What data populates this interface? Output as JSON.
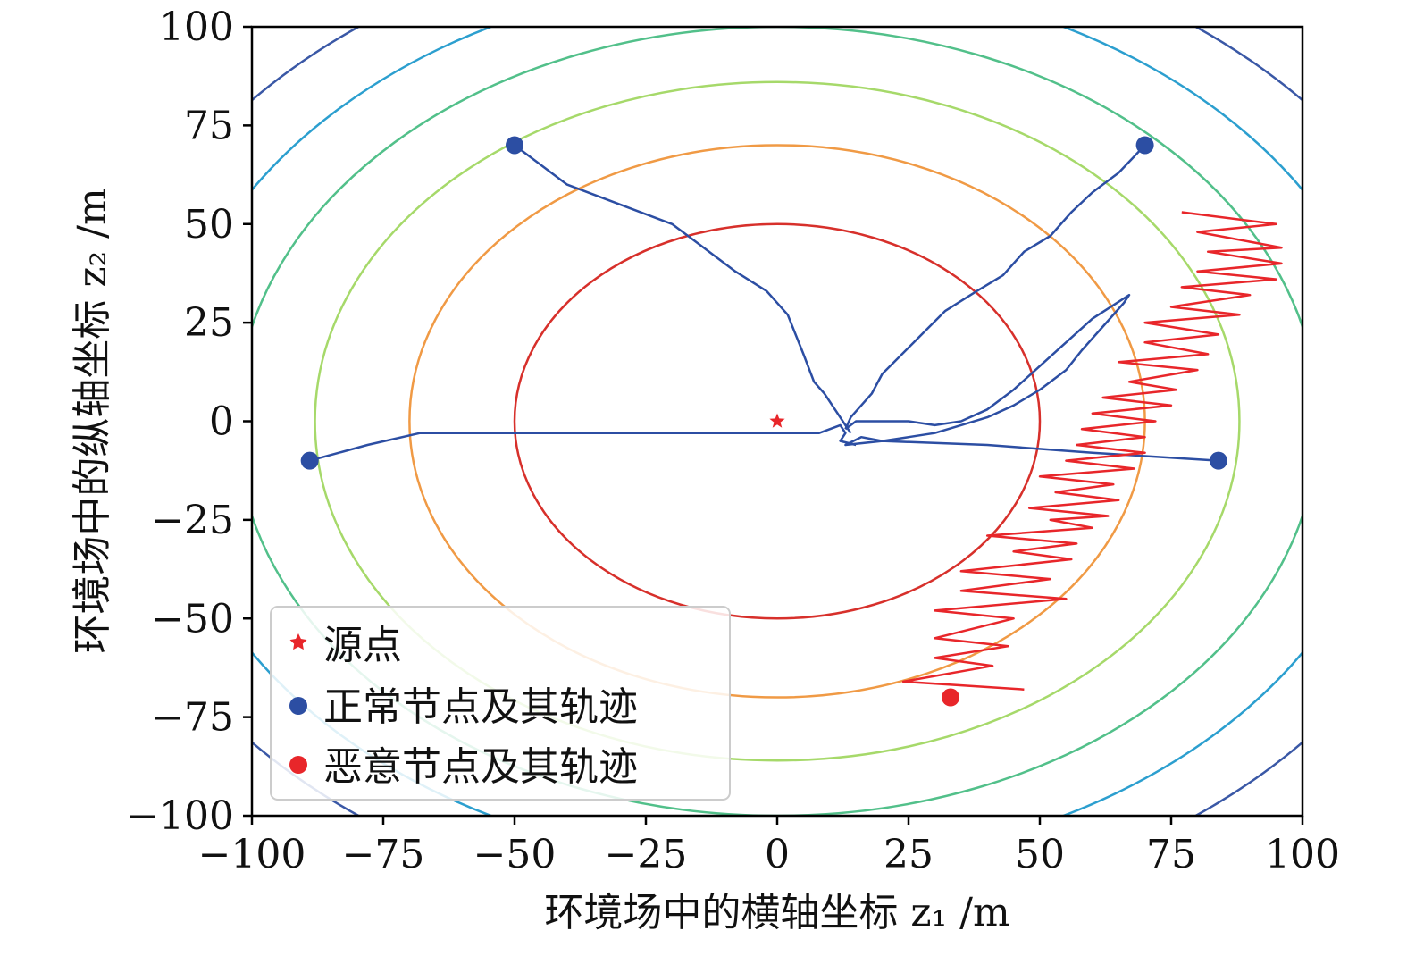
{
  "chart_data": {
    "type": "line",
    "xlabel": "环境场中的横轴坐标 z₁ /m",
    "ylabel": "环境场中的纵轴坐标 z₂ /m",
    "xlim": [
      -100,
      100
    ],
    "ylim": [
      -100,
      100
    ],
    "x_ticks": [
      -100,
      -75,
      -50,
      -25,
      0,
      25,
      50,
      75,
      100
    ],
    "y_ticks": [
      -100,
      -75,
      -50,
      -25,
      0,
      25,
      50,
      75,
      100
    ],
    "x_tick_labels": [
      "−100",
      "−75",
      "−50",
      "−25",
      "0",
      "25",
      "50",
      "75",
      "100"
    ],
    "y_tick_labels": [
      "−100",
      "−75",
      "−50",
      "−25",
      "0",
      "25",
      "50",
      "75",
      "100"
    ],
    "grid": false,
    "legend_position": "lower-left",
    "contour_levels": [
      {
        "a": 50,
        "b": 50,
        "color": "#d7302b"
      },
      {
        "a": 70,
        "b": 70,
        "color": "#f09a45"
      },
      {
        "a": 88,
        "b": 86,
        "color": "#a6d96a"
      },
      {
        "a": 103,
        "b": 100,
        "color": "#52c08a"
      },
      {
        "a": 117,
        "b": 113,
        "color": "#2c9fcf"
      },
      {
        "a": 131,
        "b": 126,
        "color": "#3a58a6"
      }
    ],
    "source": {
      "name": "源点",
      "x": 0,
      "y": 0,
      "color": "#e8262a"
    },
    "series": [
      {
        "name": "正常节点及其轨迹",
        "color": "#2c4ea3",
        "trajectories": [
          {
            "start": [
              -50,
              70
            ],
            "points": [
              [
                -50,
                70
              ],
              [
                -40,
                60
              ],
              [
                -30,
                55
              ],
              [
                -20,
                50
              ],
              [
                -15,
                45
              ],
              [
                -8,
                38
              ],
              [
                -2,
                33
              ],
              [
                2,
                27
              ],
              [
                5,
                17
              ],
              [
                7,
                10
              ],
              [
                9,
                7
              ],
              [
                11,
                3
              ],
              [
                13,
                -1
              ],
              [
                14,
                -3
              ]
            ]
          },
          {
            "start": [
              70,
              70
            ],
            "points": [
              [
                70,
                70
              ],
              [
                65,
                63
              ],
              [
                60,
                58
              ],
              [
                56,
                53
              ],
              [
                52,
                47
              ],
              [
                47,
                43
              ],
              [
                43,
                37
              ],
              [
                38,
                33
              ],
              [
                32,
                28
              ],
              [
                26,
                20
              ],
              [
                20,
                12
              ],
              [
                18,
                7
              ],
              [
                14,
                1
              ],
              [
                13,
                -2
              ]
            ]
          },
          {
            "start": [
              -89,
              -10
            ],
            "points": [
              [
                -89,
                -10
              ],
              [
                -78,
                -6
              ],
              [
                -68,
                -3
              ],
              [
                -40,
                -3
              ],
              [
                -20,
                -3
              ],
              [
                8,
                -3
              ],
              [
                10,
                -2
              ],
              [
                12,
                -1
              ],
              [
                13,
                -3
              ],
              [
                12,
                -5
              ],
              [
                15,
                -6
              ]
            ]
          },
          {
            "start": [
              84,
              -10
            ],
            "points": [
              [
                84,
                -10
              ],
              [
                60,
                -8
              ],
              [
                40,
                -6
              ],
              [
                20,
                -5
              ],
              [
                13,
                -6
              ],
              [
                16,
                -4
              ],
              [
                20,
                -5
              ],
              [
                25,
                -4
              ],
              [
                30,
                -3
              ],
              [
                35,
                -1
              ],
              [
                40,
                1
              ],
              [
                45,
                4
              ],
              [
                50,
                8
              ],
              [
                55,
                13
              ],
              [
                58,
                18
              ],
              [
                62,
                24
              ],
              [
                66,
                30
              ],
              [
                67,
                32
              ],
              [
                60,
                26
              ],
              [
                55,
                20
              ],
              [
                50,
                14
              ],
              [
                45,
                8
              ],
              [
                40,
                3
              ],
              [
                35,
                0
              ],
              [
                30,
                -1
              ],
              [
                25,
                0
              ],
              [
                20,
                0
              ],
              [
                15,
                0
              ],
              [
                13,
                -2
              ]
            ]
          }
        ]
      },
      {
        "name": "恶意节点及其轨迹",
        "color": "#e8262a",
        "trajectories": [
          {
            "start": [
              33,
              -70
            ],
            "points": [
              [
                47,
                -68
              ],
              [
                24,
                -66
              ],
              [
                41,
                -62
              ],
              [
                30,
                -60
              ],
              [
                44,
                -57
              ],
              [
                30,
                -55
              ],
              [
                45,
                -50
              ],
              [
                30,
                -48
              ],
              [
                55,
                -45
              ],
              [
                35,
                -43
              ],
              [
                52,
                -40
              ],
              [
                35,
                -38
              ],
              [
                56,
                -35
              ],
              [
                45,
                -33
              ],
              [
                57,
                -31
              ],
              [
                40,
                -29
              ],
              [
                60,
                -27
              ],
              [
                52,
                -25
              ],
              [
                63,
                -24
              ],
              [
                48,
                -22
              ],
              [
                65,
                -20
              ],
              [
                53,
                -18
              ],
              [
                64,
                -16
              ],
              [
                50,
                -14
              ],
              [
                68,
                -12
              ],
              [
                55,
                -10
              ],
              [
                70,
                -8
              ],
              [
                57,
                -6
              ],
              [
                70,
                -4
              ],
              [
                58,
                -2
              ],
              [
                72,
                0
              ],
              [
                60,
                2
              ],
              [
                75,
                4
              ],
              [
                62,
                6
              ],
              [
                76,
                8
              ],
              [
                67,
                10
              ],
              [
                80,
                13
              ],
              [
                65,
                15
              ],
              [
                82,
                17
              ],
              [
                70,
                20
              ],
              [
                84,
                22
              ],
              [
                70,
                25
              ],
              [
                88,
                27
              ],
              [
                75,
                29
              ],
              [
                90,
                32
              ],
              [
                77,
                34
              ],
              [
                95,
                36
              ],
              [
                80,
                38
              ],
              [
                96,
                40
              ],
              [
                82,
                43
              ],
              [
                96,
                44
              ],
              [
                80,
                48
              ],
              [
                95,
                50
              ],
              [
                77,
                53
              ]
            ]
          }
        ]
      }
    ]
  },
  "legend": {
    "items": [
      {
        "label": "源点"
      },
      {
        "label": "正常节点及其轨迹"
      },
      {
        "label": "恶意节点及其轨迹"
      }
    ]
  }
}
